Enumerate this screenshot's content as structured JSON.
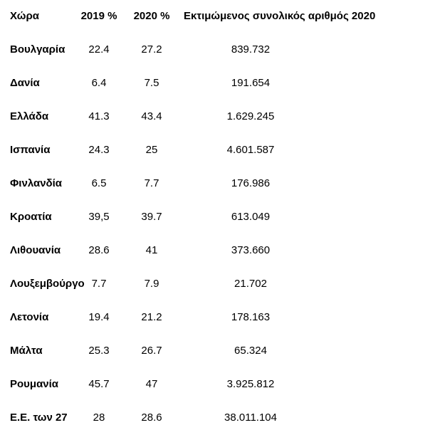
{
  "page": {
    "background_color": "#ffffff",
    "text_color": "#000000"
  },
  "table": {
    "headers": {
      "country": "Χώρα",
      "pct_2019": "2019 %",
      "pct_2020": "2020 %",
      "total_2020": "Εκτιμώμενος συνολικός αριθμός 2020"
    },
    "rows": [
      {
        "country": "Βουλγαρία",
        "pct_2019": "22.4",
        "pct_2020": "27.2",
        "total_2020": "839.732"
      },
      {
        "country": "Δανία",
        "pct_2019": "6.4",
        "pct_2020": "7.5",
        "total_2020": "191.654"
      },
      {
        "country": "Ελλάδα",
        "pct_2019": "41.3",
        "pct_2020": "43.4",
        "total_2020": "1.629.245"
      },
      {
        "country": "Ισπανία",
        "pct_2019": "24.3",
        "pct_2020": "25",
        "total_2020": "4.601.587"
      },
      {
        "country": "Φινλανδία",
        "pct_2019": "6.5",
        "pct_2020": "7.7",
        "total_2020": "176.986"
      },
      {
        "country": "Κροατία",
        "pct_2019": "39,5",
        "pct_2020": "39.7",
        "total_2020": "613.049"
      },
      {
        "country": "Λιθουανία",
        "pct_2019": "28.6",
        "pct_2020": "41",
        "total_2020": "373.660"
      },
      {
        "country": "Λουξεμβούργο",
        "pct_2019": "7.7",
        "pct_2020": "7.9",
        "total_2020": "21.702"
      },
      {
        "country": "Λετονία",
        "pct_2019": "19.4",
        "pct_2020": "21.2",
        "total_2020": "178.163"
      },
      {
        "country": "Μάλτα",
        "pct_2019": "25.3",
        "pct_2020": "26.7",
        "total_2020": "65.324"
      },
      {
        "country": "Ρουμανία",
        "pct_2019": "45.7",
        "pct_2020": "47",
        "total_2020": "3.925.812"
      },
      {
        "country": "Ε.Ε. των 27",
        "pct_2019": "28",
        "pct_2020": "28.6",
        "total_2020": "38.011.104"
      }
    ]
  }
}
